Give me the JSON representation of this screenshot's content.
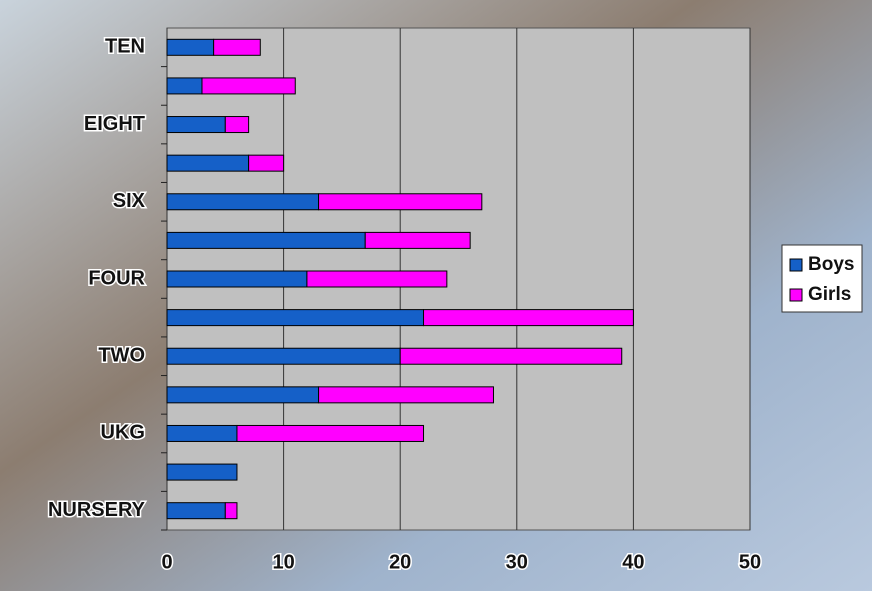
{
  "chart_data": {
    "type": "bar",
    "orientation": "horizontal",
    "stacked": true,
    "categories": [
      "NURSERY",
      null,
      "UKG",
      null,
      "TWO",
      null,
      "FOUR",
      null,
      "SIX",
      null,
      "EIGHT",
      null,
      "TEN"
    ],
    "series": [
      {
        "name": "Boys",
        "color": "#1560c8",
        "values": [
          5,
          6,
          6,
          13,
          20,
          22,
          12,
          17,
          13,
          7,
          5,
          3,
          4
        ]
      },
      {
        "name": "Girls",
        "color": "#ff00ff",
        "values": [
          1,
          0,
          16,
          15,
          19,
          18,
          12,
          9,
          14,
          3,
          2,
          8,
          4
        ]
      }
    ],
    "xlim": [
      0,
      50
    ],
    "xticks": [
      0,
      10,
      20,
      30,
      40,
      50
    ],
    "grid": true,
    "legend": "right"
  }
}
